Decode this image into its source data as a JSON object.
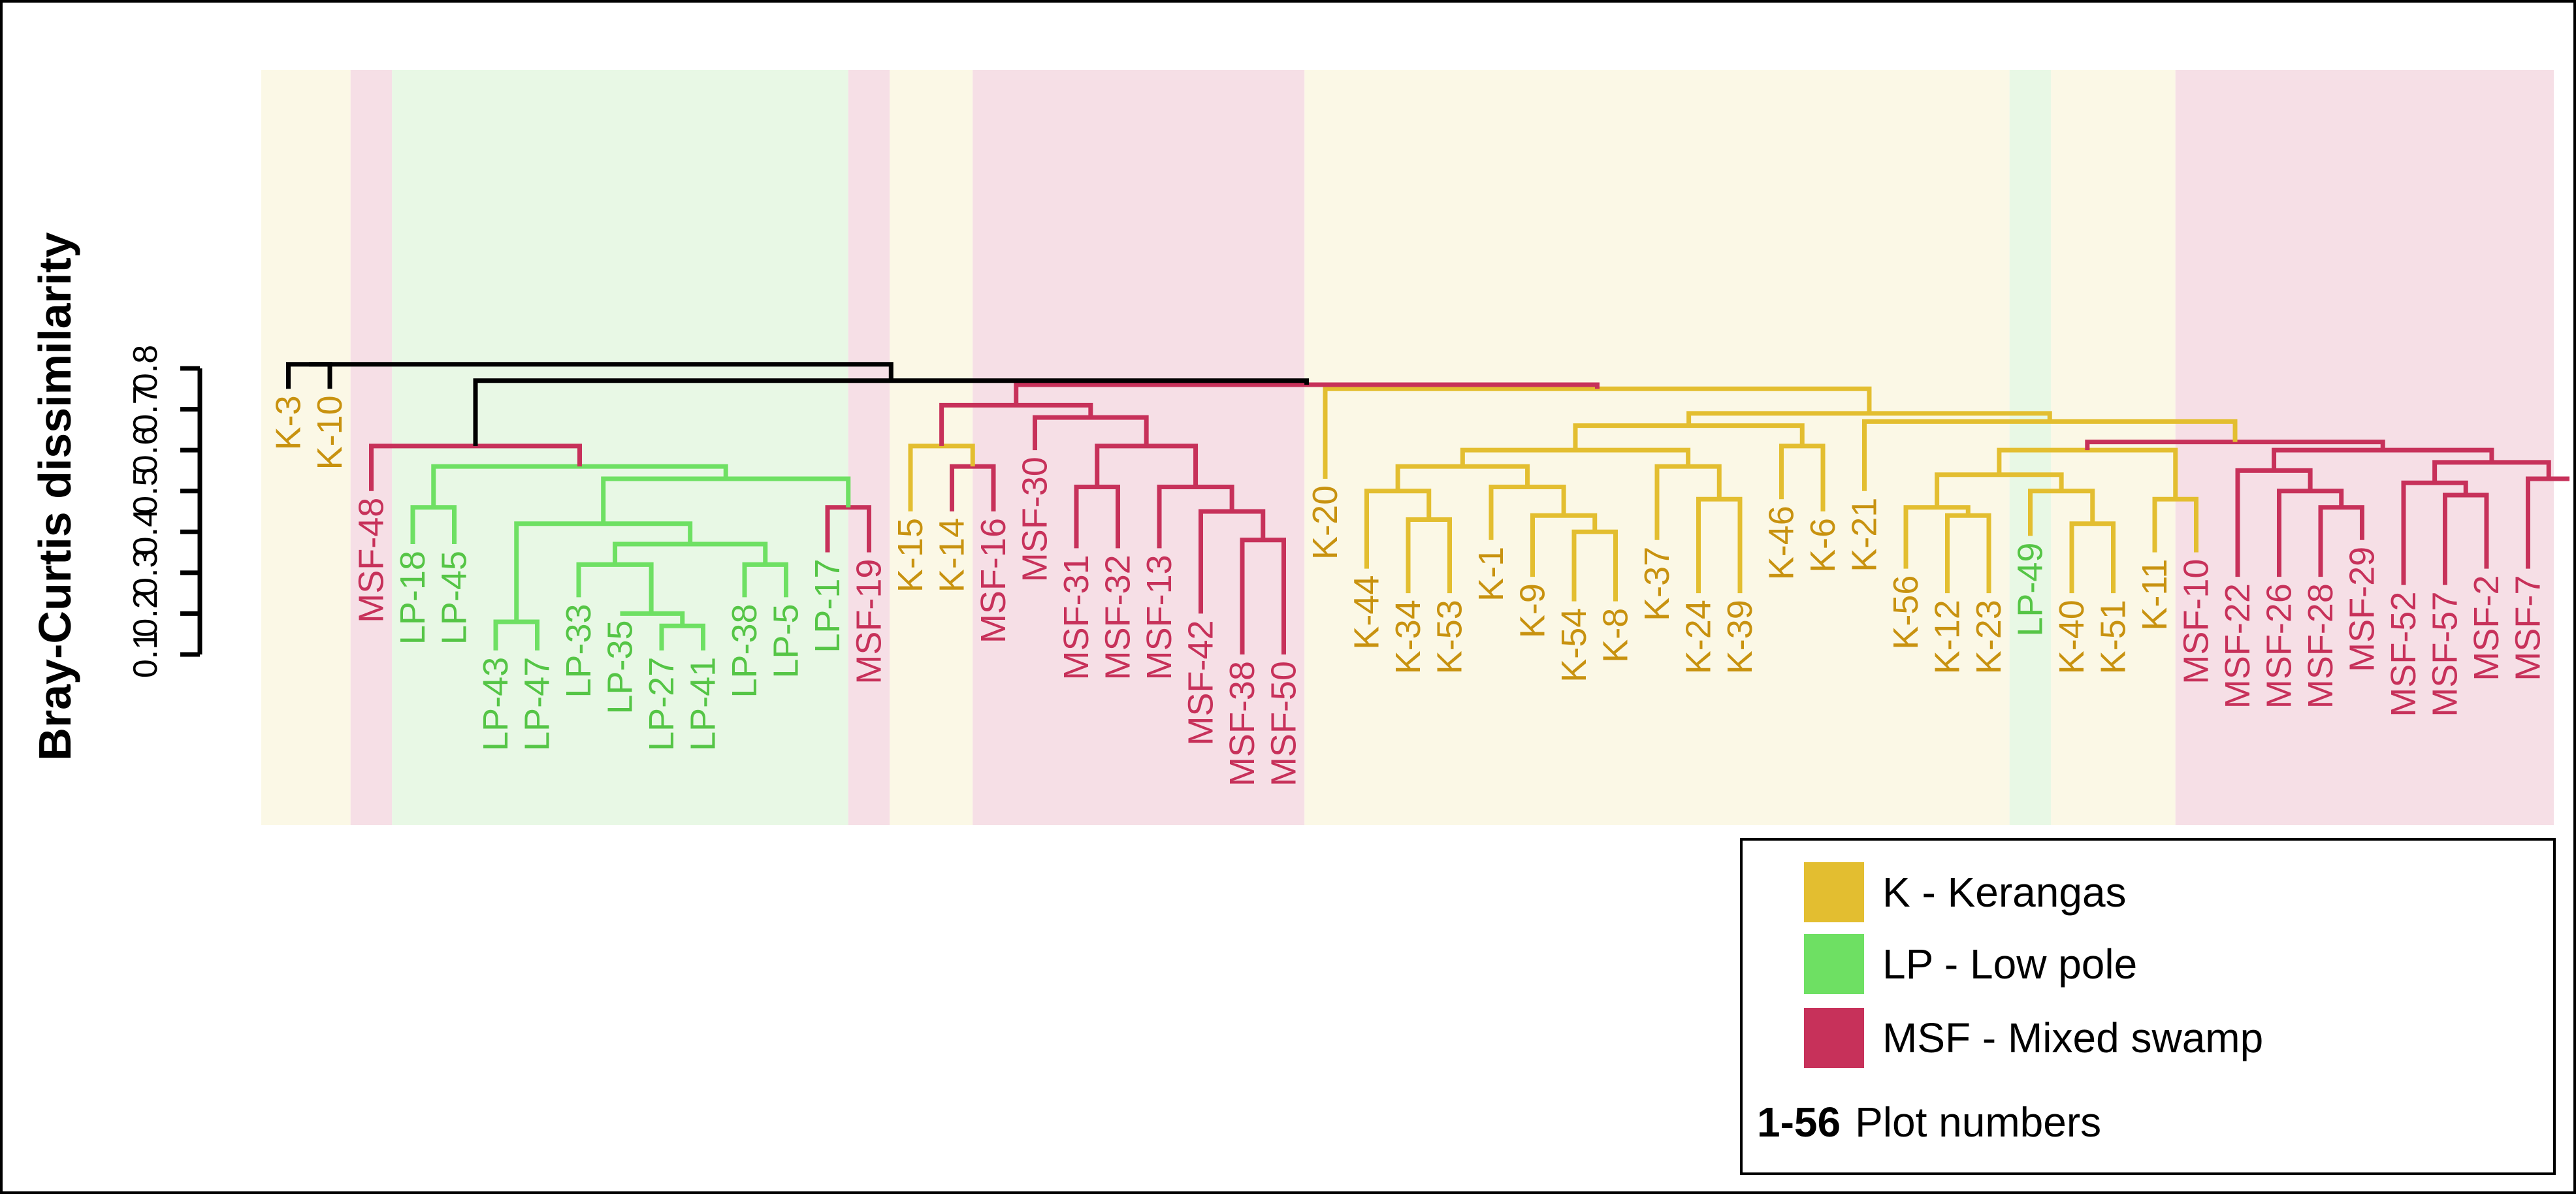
{
  "chart_data": {
    "type": "dendrogram",
    "ylabel": "Bray-Curtis dissimilarity",
    "ylim": [
      0.1,
      0.8
    ],
    "yticks": [
      "0.1",
      "0.2",
      "0.3",
      "0.4",
      "0.5",
      "0.6",
      "0.7",
      "0.8"
    ],
    "colors": {
      "K": "#E3BE30",
      "LP": "#6EE063",
      "MSF": "#C7315A",
      "root": "#000000"
    },
    "label_colors": {
      "K": "#C8920F",
      "LP": "#55C546",
      "MSF": "#C7315A"
    },
    "band_colors": {
      "K": "#FBF8E6",
      "LP": "#E8F8E5",
      "MSF": "#F6DFE6"
    },
    "leaves": [
      {
        "label": "K-3",
        "group": "K"
      },
      {
        "label": "K-10",
        "group": "K"
      },
      {
        "label": "MSF-48",
        "group": "MSF"
      },
      {
        "label": "LP-18",
        "group": "LP"
      },
      {
        "label": "LP-45",
        "group": "LP"
      },
      {
        "label": "LP-43",
        "group": "LP"
      },
      {
        "label": "LP-47",
        "group": "LP"
      },
      {
        "label": "LP-33",
        "group": "LP"
      },
      {
        "label": "LP-35",
        "group": "LP"
      },
      {
        "label": "LP-27",
        "group": "LP"
      },
      {
        "label": "LP-41",
        "group": "LP"
      },
      {
        "label": "LP-38",
        "group": "LP"
      },
      {
        "label": "LP-5",
        "group": "LP"
      },
      {
        "label": "LP-17",
        "group": "LP"
      },
      {
        "label": "MSF-19",
        "group": "MSF"
      },
      {
        "label": "K-15",
        "group": "K"
      },
      {
        "label": "K-14",
        "group": "K"
      },
      {
        "label": "MSF-16",
        "group": "MSF"
      },
      {
        "label": "MSF-30",
        "group": "MSF"
      },
      {
        "label": "MSF-31",
        "group": "MSF"
      },
      {
        "label": "MSF-32",
        "group": "MSF"
      },
      {
        "label": "MSF-13",
        "group": "MSF"
      },
      {
        "label": "MSF-42",
        "group": "MSF"
      },
      {
        "label": "MSF-38",
        "group": "MSF"
      },
      {
        "label": "MSF-50",
        "group": "MSF"
      },
      {
        "label": "K-20",
        "group": "K"
      },
      {
        "label": "K-44",
        "group": "K"
      },
      {
        "label": "K-34",
        "group": "K"
      },
      {
        "label": "K-53",
        "group": "K"
      },
      {
        "label": "K-1",
        "group": "K"
      },
      {
        "label": "K-9",
        "group": "K"
      },
      {
        "label": "K-54",
        "group": "K"
      },
      {
        "label": "K-8",
        "group": "K"
      },
      {
        "label": "K-37",
        "group": "K"
      },
      {
        "label": "K-24",
        "group": "K"
      },
      {
        "label": "K-39",
        "group": "K"
      },
      {
        "label": "K-46",
        "group": "K"
      },
      {
        "label": "K-6",
        "group": "K"
      },
      {
        "label": "K-21",
        "group": "K"
      },
      {
        "label": "K-56",
        "group": "K"
      },
      {
        "label": "K-12",
        "group": "K"
      },
      {
        "label": "K-23",
        "group": "K"
      },
      {
        "label": "LP-49",
        "group": "LP"
      },
      {
        "label": "K-40",
        "group": "K"
      },
      {
        "label": "K-51",
        "group": "K"
      },
      {
        "label": "K-11",
        "group": "K"
      },
      {
        "label": "MSF-10",
        "group": "MSF"
      },
      {
        "label": "MSF-22",
        "group": "MSF"
      },
      {
        "label": "MSF-26",
        "group": "MSF"
      },
      {
        "label": "MSF-28",
        "group": "MSF"
      },
      {
        "label": "MSF-29",
        "group": "MSF"
      },
      {
        "label": "MSF-52",
        "group": "MSF"
      },
      {
        "label": "MSF-57",
        "group": "MSF"
      },
      {
        "label": "MSF-2",
        "group": "MSF"
      },
      {
        "label": "MSF-7",
        "group": "MSF"
      }
    ],
    "leaf_heights": [
      0.75,
      0.75,
      0.5,
      0.37,
      0.37,
      0.11,
      0.11,
      0.24,
      0.2,
      0.11,
      0.11,
      0.24,
      0.24,
      0.35,
      0.35,
      0.45,
      0.45,
      0.45,
      0.6,
      0.36,
      0.36,
      0.36,
      0.2,
      0.1,
      0.1,
      0.53,
      0.31,
      0.25,
      0.25,
      0.38,
      0.29,
      0.23,
      0.23,
      0.38,
      0.25,
      0.25,
      0.48,
      0.45,
      0.5,
      0.31,
      0.25,
      0.25,
      0.39,
      0.25,
      0.25,
      0.35,
      0.35,
      0.29,
      0.29,
      0.29,
      0.38,
      0.27,
      0.27,
      0.31,
      0.31
    ],
    "merges": [
      {
        "a": 0,
        "b": 1,
        "h": 0.81,
        "group": "root"
      },
      {
        "a": 3,
        "b": 4,
        "h": 0.46,
        "group": "LP"
      },
      {
        "a": 5,
        "b": 6,
        "h": 0.18,
        "group": "LP"
      },
      {
        "a": 9,
        "b": 10,
        "h": 0.17,
        "group": "LP"
      },
      {
        "a": 8,
        "b": -4,
        "h": 0.2,
        "group": "LP"
      },
      {
        "a": 7,
        "b": -5,
        "h": 0.32,
        "group": "LP"
      },
      {
        "a": 11,
        "b": 12,
        "h": 0.32,
        "group": "LP"
      },
      {
        "a": -6,
        "b": -7,
        "h": 0.37,
        "group": "LP"
      },
      {
        "a": -3,
        "b": -8,
        "h": 0.42,
        "group": "LP"
      },
      {
        "a": 13,
        "b": 14,
        "h": 0.46,
        "group": "MSF"
      },
      {
        "a": -9,
        "b": -10,
        "h": 0.53,
        "group": "LP"
      },
      {
        "a": -2,
        "b": -11,
        "h": 0.56,
        "group": "LP"
      },
      {
        "a": 2,
        "b": -12,
        "h": 0.61,
        "group": "MSF"
      },
      {
        "a": 16,
        "b": 17,
        "h": 0.56,
        "group": "MSF"
      },
      {
        "a": 15,
        "b": -14,
        "h": 0.61,
        "group": "K"
      },
      {
        "a": 19,
        "b": 20,
        "h": 0.51,
        "group": "MSF"
      },
      {
        "a": 23,
        "b": 24,
        "h": 0.38,
        "group": "MSF"
      },
      {
        "a": 22,
        "b": -17,
        "h": 0.45,
        "group": "MSF"
      },
      {
        "a": 21,
        "b": -18,
        "h": 0.51,
        "group": "MSF"
      },
      {
        "a": -16,
        "b": -19,
        "h": 0.61,
        "group": "MSF"
      },
      {
        "a": 18,
        "b": -20,
        "h": 0.68,
        "group": "MSF"
      },
      {
        "a": -15,
        "b": -21,
        "h": 0.71,
        "group": "MSF"
      },
      {
        "a": 27,
        "b": 28,
        "h": 0.43,
        "group": "K"
      },
      {
        "a": 26,
        "b": -23,
        "h": 0.5,
        "group": "K"
      },
      {
        "a": 31,
        "b": 32,
        "h": 0.4,
        "group": "K"
      },
      {
        "a": 30,
        "b": -25,
        "h": 0.44,
        "group": "K"
      },
      {
        "a": 29,
        "b": -26,
        "h": 0.51,
        "group": "K"
      },
      {
        "a": -24,
        "b": -27,
        "h": 0.56,
        "group": "K"
      },
      {
        "a": 34,
        "b": 35,
        "h": 0.48,
        "group": "K"
      },
      {
        "a": 33,
        "b": -29,
        "h": 0.56,
        "group": "K"
      },
      {
        "a": -28,
        "b": -30,
        "h": 0.6,
        "group": "K"
      },
      {
        "a": 36,
        "b": 37,
        "h": 0.61,
        "group": "K"
      },
      {
        "a": -31,
        "b": -32,
        "h": 0.66,
        "group": "K"
      },
      {
        "a": 40,
        "b": 41,
        "h": 0.44,
        "group": "K"
      },
      {
        "a": 39,
        "b": -34,
        "h": 0.46,
        "group": "K"
      },
      {
        "a": 43,
        "b": 44,
        "h": 0.42,
        "group": "K"
      },
      {
        "a": 42,
        "b": -36,
        "h": 0.5,
        "group": "K"
      },
      {
        "a": -35,
        "b": -37,
        "h": 0.54,
        "group": "K"
      },
      {
        "a": 45,
        "b": 46,
        "h": 0.48,
        "group": "K"
      },
      {
        "a": -38,
        "b": -39,
        "h": 0.6,
        "group": "K"
      },
      {
        "a": 49,
        "b": 50,
        "h": 0.46,
        "group": "MSF"
      },
      {
        "a": 48,
        "b": -41,
        "h": 0.5,
        "group": "MSF"
      },
      {
        "a": 47,
        "b": -42,
        "h": 0.55,
        "group": "MSF"
      },
      {
        "a": 52,
        "b": 53,
        "h": 0.49,
        "group": "MSF"
      },
      {
        "a": 51,
        "b": -44,
        "h": 0.52,
        "group": "MSF"
      },
      {
        "a": 54,
        "b": 55,
        "h": 0.53,
        "group": "MSF"
      },
      {
        "a": -45,
        "b": -46,
        "h": 0.57,
        "group": "MSF"
      },
      {
        "a": -43,
        "b": -47,
        "h": 0.6,
        "group": "MSF"
      },
      {
        "a": -40,
        "b": -48,
        "h": 0.62,
        "group": "MSF"
      },
      {
        "a": 38,
        "b": -49,
        "h": 0.67,
        "group": "K"
      },
      {
        "a": -33,
        "b": -50,
        "h": 0.69,
        "group": "K"
      },
      {
        "a": 25,
        "b": -51,
        "h": 0.75,
        "group": "K"
      },
      {
        "a": -22,
        "b": -52,
        "h": 0.76,
        "group": "MSF"
      },
      {
        "a": -13,
        "b": -53,
        "h": 0.77,
        "group": "root"
      },
      {
        "a": -1,
        "b": -54,
        "h": 0.81,
        "group": "root"
      }
    ],
    "legend": {
      "placement": "bottom-right",
      "items": [
        {
          "label": "K - Kerangas",
          "group": "K"
        },
        {
          "label": "LP - Low pole",
          "group": "LP"
        },
        {
          "label": "MSF - Mixed swamp",
          "group": "MSF"
        }
      ],
      "note_bold": "1-56",
      "note_text": "Plot numbers"
    }
  }
}
